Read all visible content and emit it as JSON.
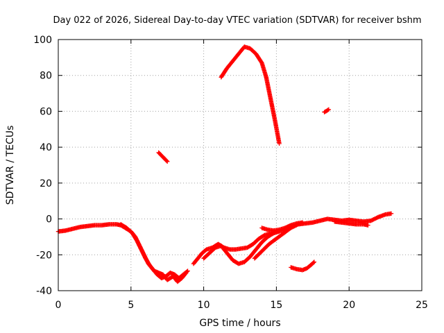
{
  "chart_data": {
    "type": "scatter",
    "title": "Day 022 of 2026, Sidereal Day-to-day VTEC variation (SDTVAR) for receiver bshm",
    "xlabel": "GPS time / hours",
    "ylabel": "SDTVAR / TECUs",
    "xlim": [
      0,
      25
    ],
    "ylim": [
      -40,
      100
    ],
    "xticks": [
      0,
      5,
      10,
      15,
      20,
      25
    ],
    "yticks": [
      -40,
      -20,
      0,
      20,
      40,
      60,
      80,
      100
    ],
    "xtick_labels": [
      "0",
      "5",
      "10",
      "15",
      "20",
      "25"
    ],
    "ytick_labels": [
      "-40",
      "-20",
      "0",
      "20",
      "40",
      "60",
      "80",
      "100"
    ],
    "grid": true,
    "marker": "+",
    "color": "#ff0000",
    "series": [
      {
        "name": "s1",
        "points": [
          [
            0,
            -7
          ],
          [
            0.5,
            -6.5
          ],
          [
            1,
            -5.5
          ],
          [
            1.5,
            -4.5
          ],
          [
            2,
            -4
          ],
          [
            2.5,
            -3.5
          ],
          [
            3,
            -3.5
          ],
          [
            3.5,
            -3
          ],
          [
            4,
            -3
          ],
          [
            4.3,
            -3.5
          ],
          [
            4.6,
            -5
          ],
          [
            5,
            -7
          ],
          [
            5.3,
            -10
          ],
          [
            5.6,
            -15
          ],
          [
            5.9,
            -20
          ],
          [
            6.2,
            -25
          ],
          [
            6.5,
            -28
          ],
          [
            6.8,
            -31
          ],
          [
            7.1,
            -33
          ],
          [
            7.4,
            -32
          ],
          [
            7.7,
            -30
          ],
          [
            8,
            -31
          ],
          [
            8.3,
            -33
          ],
          [
            8.6,
            -31
          ],
          [
            8.9,
            -29
          ]
        ]
      },
      {
        "name": "s2",
        "points": [
          [
            4.3,
            -3
          ],
          [
            4.7,
            -5
          ],
          [
            5.1,
            -8
          ],
          [
            5.4,
            -12
          ],
          [
            5.7,
            -17
          ],
          [
            6,
            -22
          ],
          [
            6.3,
            -26
          ],
          [
            6.6,
            -29
          ],
          [
            6.9,
            -30
          ],
          [
            7.2,
            -31
          ],
          [
            7.5,
            -34
          ],
          [
            7.9,
            -32
          ],
          [
            8.2,
            -35
          ],
          [
            8.5,
            -33
          ],
          [
            8.8,
            -30
          ]
        ]
      },
      {
        "name": "s3",
        "points": [
          [
            9.3,
            -25
          ],
          [
            9.6,
            -22
          ],
          [
            9.9,
            -19
          ],
          [
            10.2,
            -17
          ],
          [
            10.6,
            -16
          ],
          [
            11,
            -14
          ],
          [
            11.4,
            -16
          ],
          [
            11.8,
            -17
          ],
          [
            12.2,
            -17
          ],
          [
            12.6,
            -16.5
          ],
          [
            13,
            -16
          ],
          [
            13.4,
            -14
          ],
          [
            13.8,
            -11
          ],
          [
            14.2,
            -9
          ],
          [
            14.6,
            -8
          ],
          [
            15,
            -7
          ],
          [
            15.4,
            -6.5
          ],
          [
            15.8,
            -5
          ]
        ]
      },
      {
        "name": "s4",
        "points": [
          [
            10,
            -22
          ],
          [
            10.4,
            -19
          ],
          [
            10.8,
            -16
          ],
          [
            11.2,
            -15
          ],
          [
            11.6,
            -19
          ],
          [
            12,
            -23
          ],
          [
            12.4,
            -25
          ],
          [
            12.8,
            -24
          ],
          [
            13.2,
            -21
          ],
          [
            13.6,
            -17
          ],
          [
            14,
            -13
          ],
          [
            14.4,
            -10
          ],
          [
            14.8,
            -8
          ],
          [
            15.2,
            -7
          ]
        ]
      },
      {
        "name": "s5",
        "points": [
          [
            13.5,
            -22
          ],
          [
            14,
            -18
          ],
          [
            14.5,
            -14
          ],
          [
            15,
            -11
          ],
          [
            15.5,
            -8
          ],
          [
            16,
            -5
          ],
          [
            16.5,
            -3
          ],
          [
            17,
            -2.5
          ],
          [
            17.5,
            -2
          ],
          [
            18,
            -1
          ],
          [
            18.5,
            0
          ],
          [
            19,
            -0.5
          ],
          [
            19.5,
            -1
          ],
          [
            20,
            -0.5
          ],
          [
            20.5,
            -1
          ],
          [
            21,
            -1.5
          ],
          [
            21.5,
            -1
          ],
          [
            22,
            1
          ],
          [
            22.5,
            2.5
          ],
          [
            22.9,
            3
          ]
        ]
      },
      {
        "name": "s6",
        "points": [
          [
            14,
            -5
          ],
          [
            14.4,
            -6
          ],
          [
            14.8,
            -6.5
          ],
          [
            15.2,
            -6
          ],
          [
            15.6,
            -5
          ],
          [
            16,
            -3.5
          ],
          [
            16.4,
            -2.5
          ],
          [
            16.8,
            -2
          ]
        ]
      },
      {
        "name": "s7",
        "points": [
          [
            19,
            -1.5
          ],
          [
            19.5,
            -2
          ],
          [
            20,
            -2.5
          ],
          [
            20.5,
            -3
          ],
          [
            21,
            -3
          ],
          [
            21.3,
            -3.5
          ]
        ]
      },
      {
        "name": "s8",
        "points": [
          [
            11.2,
            79
          ],
          [
            11.6,
            84
          ],
          [
            12,
            88
          ],
          [
            12.4,
            92
          ],
          [
            12.8,
            96
          ],
          [
            13.2,
            95
          ],
          [
            13.6,
            92
          ],
          [
            14,
            87
          ],
          [
            14.3,
            79
          ],
          [
            14.6,
            67
          ],
          [
            14.9,
            55
          ],
          [
            15.2,
            42
          ]
        ]
      },
      {
        "name": "s9",
        "points": [
          [
            6.9,
            37
          ],
          [
            7.2,
            34.5
          ],
          [
            7.5,
            32
          ]
        ]
      },
      {
        "name": "s10",
        "points": [
          [
            18.3,
            59.5
          ],
          [
            18.6,
            61
          ]
        ]
      },
      {
        "name": "s11",
        "points": [
          [
            16,
            -27
          ],
          [
            16.4,
            -28
          ],
          [
            16.8,
            -28.5
          ],
          [
            17.1,
            -27.5
          ],
          [
            17.4,
            -25.5
          ],
          [
            17.6,
            -24
          ]
        ]
      }
    ]
  }
}
